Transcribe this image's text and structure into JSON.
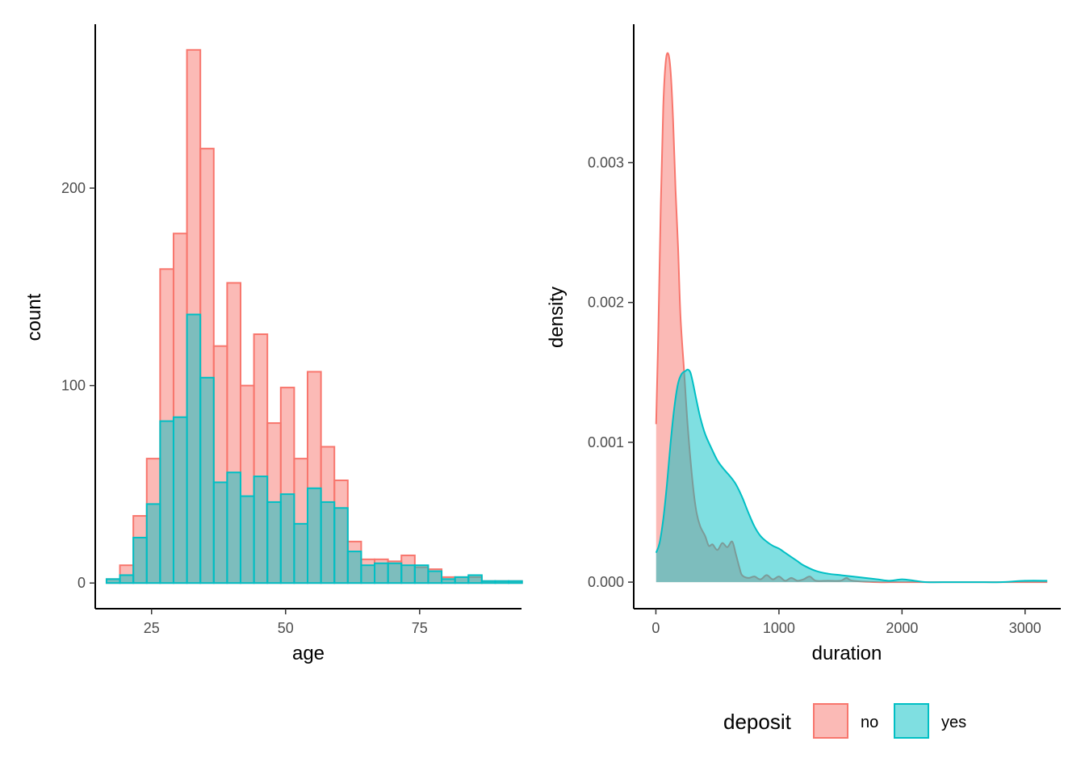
{
  "colors": {
    "no": "#F8766D",
    "yes": "#00BFC4",
    "overlap": "#808080"
  },
  "legend": {
    "title": "deposit",
    "items": [
      {
        "label": "no",
        "fill": "#F8766D"
      },
      {
        "label": "yes",
        "fill": "#00BFC4"
      }
    ],
    "position": "bottom-right"
  },
  "chart_data": [
    {
      "type": "bar",
      "subtype": "histogram-overlay",
      "xlabel": "age",
      "ylabel": "count",
      "xlim": [
        14.5,
        94
      ],
      "ylim": [
        -13,
        283
      ],
      "xticks": [
        25,
        50,
        75
      ],
      "xtick_labels": [
        "25",
        "50",
        "75"
      ],
      "yticks": [
        0,
        100,
        200
      ],
      "ytick_labels": [
        "0",
        "100",
        "200"
      ],
      "bin_edges": [
        16.6,
        19.1,
        21.6,
        24.1,
        26.6,
        29.1,
        31.6,
        34.1,
        36.6,
        39.1,
        41.6,
        44.1,
        46.6,
        49.1,
        51.6,
        54.1,
        56.6,
        59.1,
        61.6,
        64.1,
        66.6,
        69.1,
        71.6,
        74.1,
        76.6,
        79.1,
        81.6,
        84.1,
        86.6,
        89.1,
        91.6,
        94.1
      ],
      "series": [
        {
          "name": "no",
          "values": [
            2,
            9,
            34,
            63,
            159,
            177,
            270,
            220,
            120,
            152,
            100,
            126,
            81,
            99,
            63,
            107,
            69,
            52,
            21,
            12,
            12,
            11,
            14,
            8,
            7,
            3,
            3,
            3,
            1,
            1,
            1
          ]
        },
        {
          "name": "yes",
          "values": [
            2,
            4,
            23,
            40,
            82,
            84,
            136,
            104,
            51,
            56,
            44,
            54,
            41,
            45,
            30,
            48,
            41,
            38,
            16,
            9,
            10,
            10,
            9,
            9,
            6,
            2,
            3,
            4,
            1,
            1,
            1
          ]
        }
      ],
      "grid": false
    },
    {
      "type": "area",
      "subtype": "density-overlay",
      "xlabel": "duration",
      "ylabel": "density",
      "xlim": [
        -180,
        3290
      ],
      "ylim": [
        -0.00019,
        0.00399
      ],
      "xticks": [
        0,
        1000,
        2000,
        3000
      ],
      "xtick_labels": [
        "0",
        "1000",
        "2000",
        "3000"
      ],
      "yticks": [
        0,
        0.001,
        0.002,
        0.003
      ],
      "ytick_labels": [
        "0.000",
        "0.001",
        "0.002",
        "0.003"
      ],
      "series": [
        {
          "name": "no",
          "x": [
            2,
            20,
            40,
            60,
            80,
            100,
            120,
            140,
            160,
            180,
            200,
            230,
            260,
            300,
            330,
            360,
            400,
            430,
            460,
            500,
            540,
            580,
            620,
            650,
            680,
            700,
            750,
            800,
            850,
            900,
            950,
            1000,
            1050,
            1100,
            1150,
            1200,
            1250,
            1300,
            1400,
            1500,
            1550,
            1600,
            1800,
            2000,
            2500,
            3000,
            3180
          ],
          "y": [
            0.00113,
            0.0018,
            0.0027,
            0.0034,
            0.00372,
            0.00378,
            0.00365,
            0.0033,
            0.0028,
            0.0024,
            0.0019,
            0.0015,
            0.0011,
            0.0007,
            0.0005,
            0.0004,
            0.00033,
            0.00026,
            0.00027,
            0.00023,
            0.00028,
            0.00025,
            0.00029,
            0.0002,
            0.0001,
            5e-05,
            3e-05,
            4e-05,
            2e-05,
            5e-05,
            2e-05,
            4e-05,
            1e-05,
            3e-05,
            1e-05,
            2e-05,
            4e-05,
            1e-05,
            1e-05,
            1e-05,
            3e-05,
            1e-05,
            0.0,
            0.0,
            0.0,
            0.0,
            0.0
          ]
        },
        {
          "name": "yes",
          "x": [
            2,
            30,
            60,
            90,
            120,
            150,
            180,
            210,
            240,
            260,
            280,
            300,
            330,
            360,
            400,
            450,
            500,
            550,
            600,
            650,
            700,
            750,
            800,
            850,
            900,
            950,
            1000,
            1050,
            1100,
            1150,
            1200,
            1300,
            1400,
            1500,
            1600,
            1700,
            1800,
            1900,
            2000,
            2100,
            2200,
            2400,
            2600,
            2800,
            3000,
            3180
          ],
          "y": [
            0.00021,
            0.00028,
            0.00045,
            0.0007,
            0.001,
            0.00125,
            0.00142,
            0.00149,
            0.00151,
            0.00152,
            0.0015,
            0.00143,
            0.0013,
            0.00118,
            0.00106,
            0.00096,
            0.00087,
            0.00081,
            0.00076,
            0.0007,
            0.00061,
            0.0005,
            0.0004,
            0.00033,
            0.00029,
            0.00026,
            0.00024,
            0.00021,
            0.00018,
            0.00015,
            0.00012,
            8e-05,
            6e-05,
            5e-05,
            4e-05,
            3e-05,
            2e-05,
            1e-05,
            2e-05,
            1e-05,
            0.0,
            0.0,
            0.0,
            0.0,
            1e-05,
            1e-05
          ]
        }
      ],
      "grid": false
    }
  ]
}
